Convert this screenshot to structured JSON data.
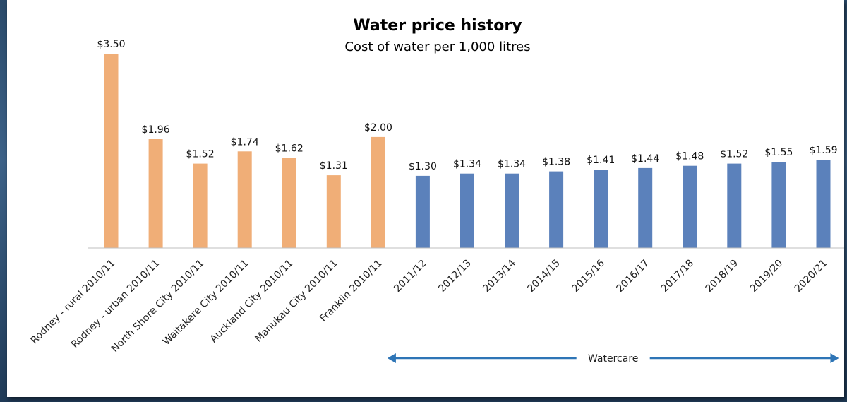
{
  "chart_data": {
    "type": "bar",
    "title": "Water price history",
    "subtitle": "Cost of water per 1,000 litres",
    "categories": [
      "Rodney - rural 2010/11",
      "Rodney - urban 2010/11",
      "North Shore City 2010/11",
      "Waitakere City 2010/11",
      "Auckland City 2010/11",
      "Manukau City 2010/11",
      "Franklin 2010/11",
      "2011/12",
      "2012/13",
      "2013/14",
      "2014/15",
      "2015/16",
      "2016/17",
      "2017/18",
      "2018/19",
      "2019/20",
      "2020/21"
    ],
    "values": [
      3.5,
      1.96,
      1.52,
      1.74,
      1.62,
      1.31,
      2.0,
      1.3,
      1.34,
      1.34,
      1.38,
      1.41,
      1.44,
      1.48,
      1.52,
      1.55,
      1.59
    ],
    "data_labels": [
      "$3.50",
      "$1.96",
      "$1.52",
      "$1.74",
      "$1.62",
      "$1.31",
      "$2.00",
      "$1.30",
      "$1.34",
      "$1.34",
      "$1.38",
      "$1.41",
      "$1.44",
      "$1.48",
      "$1.52",
      "$1.55",
      "$1.59"
    ],
    "bar_groups": [
      0,
      0,
      0,
      0,
      0,
      0,
      0,
      1,
      1,
      1,
      1,
      1,
      1,
      1,
      1,
      1,
      1
    ],
    "group_colors": [
      "#f0ae77",
      "#5b81bb"
    ],
    "ylim": [
      0,
      3.5
    ],
    "grid": false,
    "xlabel": "",
    "ylabel": "",
    "annotation": {
      "label": "Watercare",
      "from_category": "2011/12",
      "to_category": "2020/21",
      "color": "#2e75b6"
    }
  }
}
